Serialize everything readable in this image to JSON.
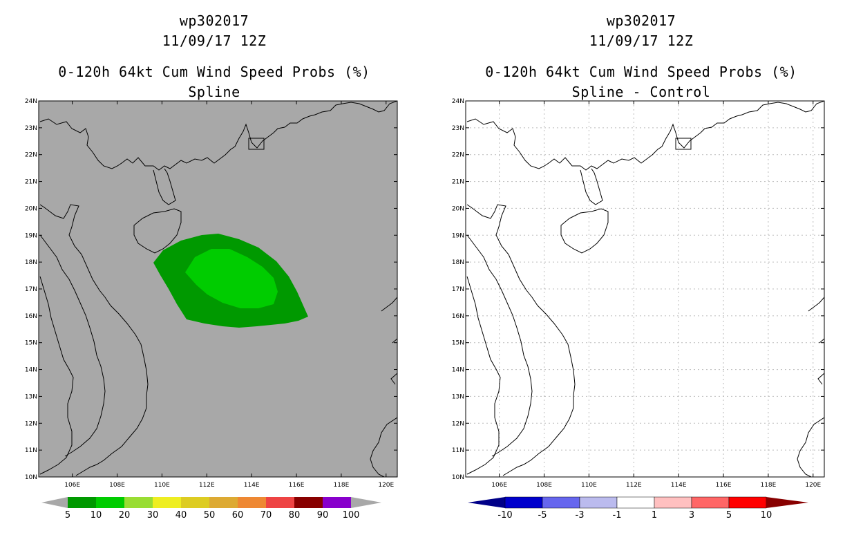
{
  "left_panel": {
    "title_line1": "wp302017",
    "title_line2": "11/09/17 12Z",
    "title_line3": "0-120h 64kt Cum Wind Speed Probs (%)",
    "title_line4": "Spline",
    "background_color": "#a8a8a8",
    "colorbar": {
      "labels": [
        "5",
        "10",
        "20",
        "30",
        "40",
        "50",
        "60",
        "70",
        "80",
        "90",
        "100"
      ],
      "colors": [
        "#009900",
        "#00cc00",
        "#99dd33",
        "#eeee22",
        "#ddcc22",
        "#ddaa33",
        "#ee8833",
        "#ee4444",
        "#880000",
        "#8800cc"
      ],
      "end_color": "#a8a8a8"
    }
  },
  "right_panel": {
    "title_line1": "wp302017",
    "title_line2": "11/09/17 12Z",
    "title_line3": "0-120h 64kt Cum Wind Speed Probs (%)",
    "title_line4": "Spline - Control",
    "background_color": "#ffffff",
    "colorbar": {
      "labels": [
        "-10",
        "-5",
        "-3",
        "-1",
        "1",
        "3",
        "5",
        "10"
      ],
      "colors": [
        "#0000cc",
        "#6666ee",
        "#bbbbee",
        "#ffffff",
        "#ffc0c0",
        "#ff6666",
        "#ff0000"
      ],
      "end_color_low": "#000088",
      "end_color_high": "#880000"
    }
  },
  "map": {
    "lon_labels": [
      "106E",
      "108E",
      "110E",
      "112E",
      "114E",
      "116E",
      "118E",
      "120E"
    ],
    "lat_labels": [
      "10N",
      "11N",
      "12N",
      "13N",
      "14N",
      "15N",
      "16N",
      "17N",
      "18N",
      "19N",
      "20N",
      "21N",
      "22N",
      "23N",
      "24N"
    ],
    "lon_range": [
      104.5,
      120.5
    ],
    "lat_range": [
      10,
      24
    ]
  },
  "probability_field": {
    "levels": [
      {
        "threshold": "5-10",
        "color": "#009900"
      },
      {
        "threshold": "10-20",
        "color": "#00cc00"
      }
    ]
  }
}
